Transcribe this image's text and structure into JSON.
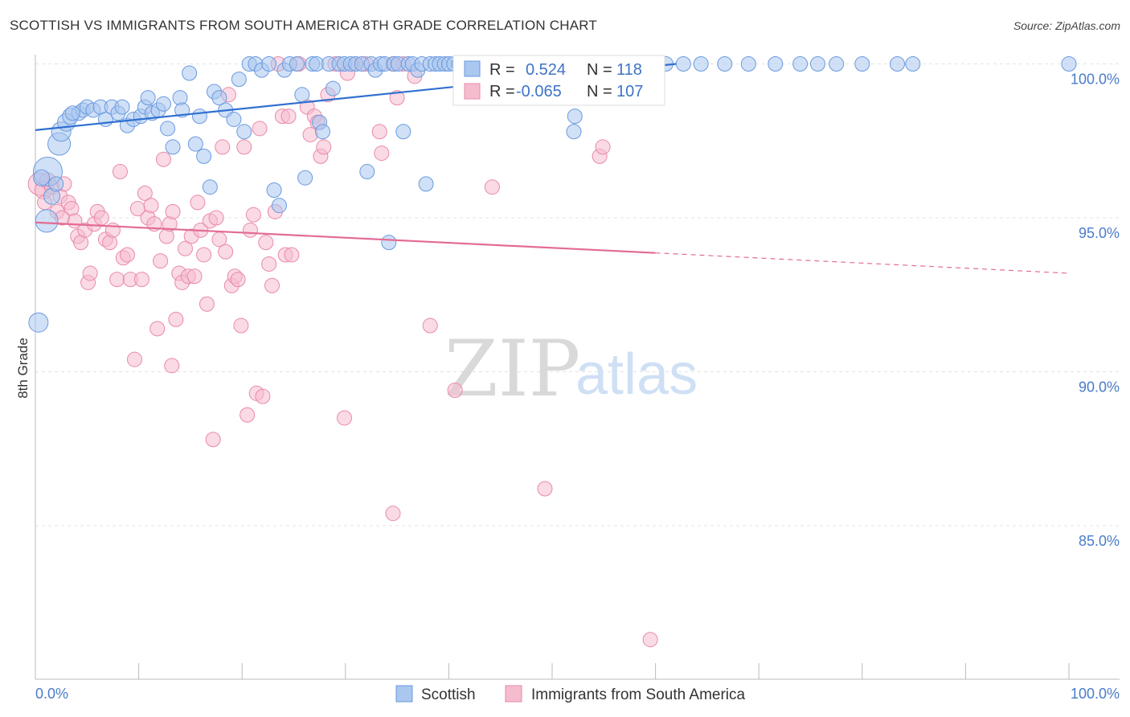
{
  "header": {
    "title": "SCOTTISH VS IMMIGRANTS FROM SOUTH AMERICA 8TH GRADE CORRELATION CHART",
    "source": "Source: ZipAtlas.com"
  },
  "watermark": {
    "zip": "ZIP",
    "atlas": "atlas"
  },
  "chart_data": {
    "type": "scatter",
    "title": "SCOTTISH VS IMMIGRANTS FROM SOUTH AMERICA 8TH GRADE CORRELATION CHART",
    "xlabel": "",
    "ylabel": "8th Grade",
    "xlim": [
      0,
      100
    ],
    "ylim": [
      80.5,
      100.8
    ],
    "x_tick_labels": [
      "0.0%",
      "100.0%"
    ],
    "y_ticks": [
      85,
      90,
      95,
      100
    ],
    "y_tick_labels": [
      "85.0%",
      "90.0%",
      "95.0%",
      "100.0%"
    ],
    "grid": "horizontal dashed",
    "legend_position": "bottom-center",
    "stats": [
      {
        "r_label": "R = ",
        "r_value": "0.524",
        "n_label": "N = ",
        "n_value": "118"
      },
      {
        "r_label": "R = ",
        "r_value": "-0.065",
        "n_label": "N = ",
        "n_value": "107"
      }
    ],
    "series": [
      {
        "name": "Scottish",
        "color": "#6a9ae0",
        "fill": "#a9c7ef",
        "trend": {
          "x0": 0,
          "y0": 97.85,
          "x1": 62,
          "y1": 100.0,
          "dash_to": 62
        },
        "points": [
          [
            0.3,
            91.6,
            12
          ],
          [
            1.2,
            96.5,
            18
          ],
          [
            1.1,
            94.9,
            14
          ],
          [
            2.3,
            97.4,
            14
          ],
          [
            2.5,
            97.8,
            12
          ],
          [
            3.0,
            98.1,
            11
          ],
          [
            3.4,
            98.3,
            10
          ],
          [
            4.2,
            98.4,
            9
          ],
          [
            4.6,
            98.5,
            9
          ],
          [
            5.0,
            98.6,
            9
          ],
          [
            5.6,
            98.5,
            9
          ],
          [
            6.3,
            98.6,
            9
          ],
          [
            6.8,
            98.2,
            9
          ],
          [
            7.4,
            98.6,
            9
          ],
          [
            8.0,
            98.4,
            9
          ],
          [
            8.4,
            98.6,
            9
          ],
          [
            8.9,
            98.0,
            9
          ],
          [
            9.5,
            98.2,
            9
          ],
          [
            10.2,
            98.3,
            9
          ],
          [
            10.6,
            98.6,
            9
          ],
          [
            10.9,
            98.9,
            9
          ],
          [
            11.3,
            98.4,
            9
          ],
          [
            11.9,
            98.5,
            9
          ],
          [
            12.4,
            98.7,
            9
          ],
          [
            12.8,
            97.9,
            9
          ],
          [
            13.3,
            97.3,
            9
          ],
          [
            14.0,
            98.9,
            9
          ],
          [
            14.2,
            98.5,
            9
          ],
          [
            14.9,
            99.7,
            9
          ],
          [
            15.5,
            97.4,
            9
          ],
          [
            15.9,
            98.3,
            9
          ],
          [
            16.3,
            97.0,
            9
          ],
          [
            16.9,
            96.0,
            9
          ],
          [
            17.3,
            99.1,
            9
          ],
          [
            17.8,
            98.9,
            9
          ],
          [
            18.4,
            98.5,
            9
          ],
          [
            19.2,
            98.2,
            9
          ],
          [
            19.7,
            99.5,
            9
          ],
          [
            20.2,
            97.8,
            9
          ],
          [
            20.7,
            100.0,
            9
          ],
          [
            21.3,
            100.0,
            9
          ],
          [
            21.9,
            99.8,
            9
          ],
          [
            22.6,
            100.0,
            9
          ],
          [
            23.1,
            95.9,
            9
          ],
          [
            23.6,
            95.4,
            9
          ],
          [
            24.1,
            99.8,
            9
          ],
          [
            24.6,
            100.0,
            9
          ],
          [
            25.3,
            100.0,
            9
          ],
          [
            25.8,
            99.0,
            9
          ],
          [
            26.1,
            96.3,
            9
          ],
          [
            26.8,
            100.0,
            9
          ],
          [
            27.2,
            100.0,
            9
          ],
          [
            27.5,
            98.1,
            9
          ],
          [
            27.8,
            97.8,
            9
          ],
          [
            28.4,
            100.0,
            9
          ],
          [
            28.8,
            99.2,
            9
          ],
          [
            29.4,
            100.0,
            9
          ],
          [
            29.9,
            100.0,
            9
          ],
          [
            30.5,
            100.0,
            9
          ],
          [
            31.0,
            100.0,
            9
          ],
          [
            31.6,
            100.0,
            9
          ],
          [
            32.1,
            96.5,
            9
          ],
          [
            32.5,
            100.0,
            9
          ],
          [
            32.9,
            99.8,
            9
          ],
          [
            33.4,
            100.0,
            9
          ],
          [
            33.8,
            100.0,
            9
          ],
          [
            34.2,
            94.2,
            9
          ],
          [
            34.7,
            100.0,
            9
          ],
          [
            35.1,
            100.0,
            9
          ],
          [
            35.6,
            97.8,
            9
          ],
          [
            36.1,
            100.0,
            9
          ],
          [
            36.5,
            100.0,
            9
          ],
          [
            37.0,
            99.8,
            9
          ],
          [
            37.4,
            100.0,
            9
          ],
          [
            37.8,
            96.1,
            9
          ],
          [
            38.2,
            100.0,
            9
          ],
          [
            38.7,
            100.0,
            9
          ],
          [
            39.1,
            100.0,
            9
          ],
          [
            39.6,
            100.0,
            9
          ],
          [
            40.0,
            100.0,
            9
          ],
          [
            40.5,
            100.0,
            9
          ],
          [
            41.0,
            100.0,
            9
          ],
          [
            41.4,
            100.0,
            9
          ],
          [
            41.9,
            100.0,
            9
          ],
          [
            42.4,
            100.0,
            9
          ],
          [
            42.9,
            100.0,
            9
          ],
          [
            43.5,
            100.0,
            9
          ],
          [
            44.1,
            100.0,
            9
          ],
          [
            44.7,
            100.0,
            9
          ],
          [
            45.3,
            100.0,
            9
          ],
          [
            45.9,
            100.0,
            9
          ],
          [
            46.4,
            100.0,
            9
          ],
          [
            47.0,
            100.0,
            9
          ],
          [
            47.6,
            100.0,
            9
          ],
          [
            48.2,
            100.0,
            9
          ],
          [
            48.8,
            100.0,
            9
          ],
          [
            49.4,
            100.0,
            9
          ],
          [
            50.1,
            100.0,
            9
          ],
          [
            50.7,
            100.0,
            9
          ],
          [
            51.4,
            100.0,
            9
          ],
          [
            52.1,
            97.8,
            9
          ],
          [
            52.2,
            98.3,
            9
          ],
          [
            53.6,
            100.0,
            9
          ],
          [
            55.2,
            100.0,
            9
          ],
          [
            57.0,
            100.0,
            9
          ],
          [
            59.1,
            100.0,
            9
          ],
          [
            61.0,
            100.0,
            9
          ],
          [
            62.7,
            100.0,
            9
          ],
          [
            64.4,
            100.0,
            9
          ],
          [
            66.7,
            100.0,
            9
          ],
          [
            69.0,
            100.0,
            9
          ],
          [
            71.6,
            100.0,
            9
          ],
          [
            74.0,
            100.0,
            9
          ],
          [
            75.7,
            100.0,
            9
          ],
          [
            77.5,
            100.0,
            9
          ],
          [
            80.0,
            100.0,
            9
          ],
          [
            83.4,
            100.0,
            9
          ],
          [
            84.9,
            100.0,
            9
          ],
          [
            100.0,
            100.0,
            9
          ],
          [
            0.6,
            96.3,
            10
          ],
          [
            1.6,
            95.7,
            10
          ],
          [
            2.0,
            96.1,
            9
          ],
          [
            3.6,
            98.4,
            9
          ]
        ]
      },
      {
        "name": "Immigrants from South America",
        "color": "#e98aa9",
        "fill": "#f5bccd",
        "trend": {
          "x0": 0,
          "y0": 94.85,
          "x1": 100,
          "y1": 93.2,
          "dash_from": 60
        },
        "points": [
          [
            0.4,
            96.1,
            14
          ],
          [
            0.8,
            95.9,
            11
          ],
          [
            1.2,
            96.2,
            10
          ],
          [
            1.6,
            96.0,
            9
          ],
          [
            2.1,
            95.2,
            9
          ],
          [
            2.4,
            95.7,
            9
          ],
          [
            2.8,
            96.1,
            9
          ],
          [
            3.2,
            95.5,
            9
          ],
          [
            3.5,
            95.3,
            9
          ],
          [
            3.8,
            94.9,
            9
          ],
          [
            4.1,
            94.4,
            9
          ],
          [
            4.4,
            94.2,
            9
          ],
          [
            4.8,
            94.6,
            9
          ],
          [
            5.1,
            92.9,
            9
          ],
          [
            5.3,
            93.2,
            9
          ],
          [
            5.7,
            94.8,
            9
          ],
          [
            6.0,
            95.2,
            9
          ],
          [
            6.4,
            95.0,
            9
          ],
          [
            6.8,
            94.3,
            9
          ],
          [
            7.2,
            94.2,
            9
          ],
          [
            7.5,
            94.6,
            9
          ],
          [
            7.9,
            93.0,
            9
          ],
          [
            8.2,
            96.5,
            9
          ],
          [
            8.5,
            93.7,
            9
          ],
          [
            8.9,
            93.8,
            9
          ],
          [
            9.2,
            93.0,
            9
          ],
          [
            9.6,
            90.4,
            9
          ],
          [
            9.9,
            95.3,
            9
          ],
          [
            10.3,
            93.0,
            9
          ],
          [
            10.6,
            95.8,
            9
          ],
          [
            10.9,
            95.0,
            9
          ],
          [
            11.2,
            95.4,
            9
          ],
          [
            11.5,
            94.8,
            9
          ],
          [
            11.8,
            91.4,
            9
          ],
          [
            12.1,
            93.6,
            9
          ],
          [
            12.4,
            96.9,
            9
          ],
          [
            12.7,
            94.4,
            9
          ],
          [
            13.0,
            94.8,
            9
          ],
          [
            13.2,
            90.2,
            9
          ],
          [
            13.3,
            95.2,
            9
          ],
          [
            13.6,
            91.7,
            9
          ],
          [
            13.9,
            93.2,
            9
          ],
          [
            14.2,
            92.9,
            9
          ],
          [
            14.5,
            94.0,
            9
          ],
          [
            14.8,
            93.1,
            9
          ],
          [
            15.1,
            94.4,
            9
          ],
          [
            15.4,
            93.1,
            9
          ],
          [
            15.7,
            95.5,
            9
          ],
          [
            16.0,
            94.6,
            9
          ],
          [
            16.3,
            93.8,
            9
          ],
          [
            16.6,
            92.2,
            9
          ],
          [
            16.9,
            94.9,
            9
          ],
          [
            17.2,
            87.8,
            9
          ],
          [
            17.5,
            95.0,
            9
          ],
          [
            17.8,
            94.3,
            9
          ],
          [
            18.1,
            97.3,
            9
          ],
          [
            18.4,
            93.9,
            9
          ],
          [
            18.7,
            99.0,
            9
          ],
          [
            19.0,
            92.8,
            9
          ],
          [
            19.3,
            93.1,
            9
          ],
          [
            19.6,
            93.0,
            9
          ],
          [
            19.9,
            91.5,
            9
          ],
          [
            20.2,
            97.3,
            9
          ],
          [
            20.5,
            88.6,
            9
          ],
          [
            20.8,
            94.6,
            9
          ],
          [
            21.1,
            95.1,
            9
          ],
          [
            21.4,
            89.3,
            9
          ],
          [
            21.7,
            97.9,
            9
          ],
          [
            22.0,
            89.2,
            9
          ],
          [
            22.3,
            94.2,
            9
          ],
          [
            22.6,
            93.5,
            9
          ],
          [
            22.9,
            92.8,
            9
          ],
          [
            23.2,
            95.2,
            9
          ],
          [
            23.5,
            100.0,
            9
          ],
          [
            23.9,
            98.3,
            9
          ],
          [
            24.2,
            93.8,
            9
          ],
          [
            24.5,
            98.3,
            9
          ],
          [
            24.8,
            93.8,
            9
          ],
          [
            25.5,
            100.0,
            9
          ],
          [
            26.3,
            98.6,
            9
          ],
          [
            26.6,
            97.7,
            9
          ],
          [
            27.0,
            98.3,
            9
          ],
          [
            27.3,
            98.1,
            9
          ],
          [
            27.6,
            97.0,
            9
          ],
          [
            27.9,
            97.3,
            9
          ],
          [
            28.3,
            99.0,
            9
          ],
          [
            29.0,
            100.0,
            9
          ],
          [
            29.9,
            88.5,
            9
          ],
          [
            30.2,
            99.7,
            9
          ],
          [
            31.0,
            100.0,
            9
          ],
          [
            32.0,
            100.0,
            9
          ],
          [
            33.3,
            97.8,
            9
          ],
          [
            33.5,
            97.1,
            9
          ],
          [
            34.6,
            100.0,
            9
          ],
          [
            35.0,
            98.9,
            9
          ],
          [
            35.6,
            100.0,
            9
          ],
          [
            34.6,
            85.4,
            9
          ],
          [
            36.7,
            99.6,
            9
          ],
          [
            38.2,
            91.5,
            9
          ],
          [
            40.6,
            89.4,
            9
          ],
          [
            44.2,
            96.0,
            9
          ],
          [
            49.3,
            86.2,
            9
          ],
          [
            54.6,
            97.0,
            9
          ],
          [
            54.9,
            97.3,
            9
          ],
          [
            59.5,
            81.3,
            9
          ],
          [
            0.9,
            95.5,
            9
          ],
          [
            2.6,
            95.0,
            9
          ]
        ]
      }
    ]
  },
  "legend": {
    "items": [
      {
        "label": "Scottish"
      },
      {
        "label": "Immigrants from South America"
      }
    ]
  }
}
